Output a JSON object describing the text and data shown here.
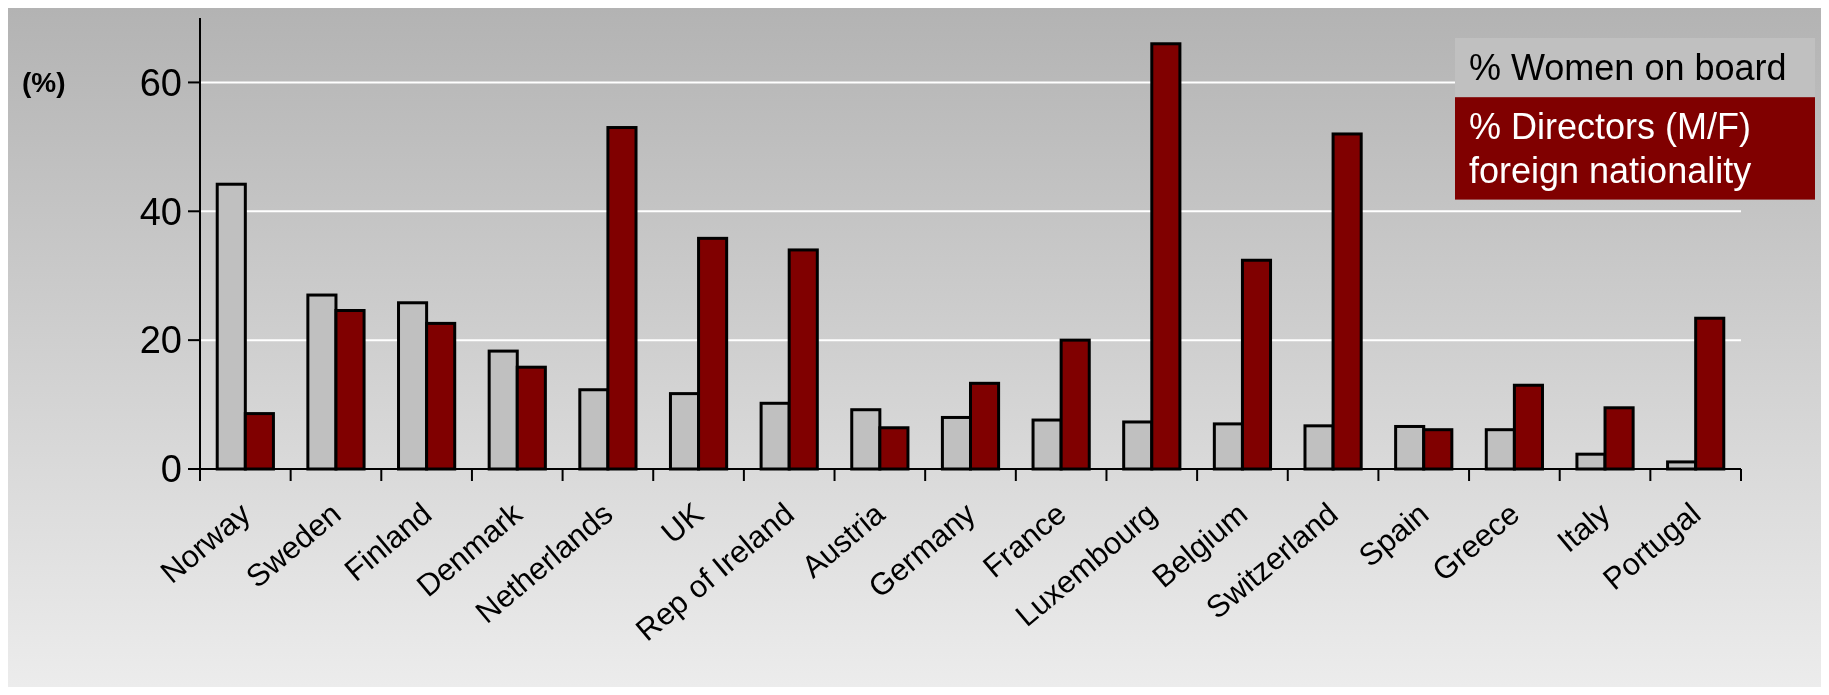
{
  "chart_data": {
    "type": "bar",
    "ylabel": "(%)",
    "categories": [
      "Norway",
      "Sweden",
      "Finland",
      "Denmark",
      "Netherlands",
      "UK",
      "Rep of Ireland",
      "Austria",
      "Germany",
      "France",
      "Luxembourg",
      "Belgium",
      "Switzerland",
      "Spain",
      "Greece",
      "Italy",
      "Portugal"
    ],
    "series": [
      {
        "name": "% Women on board",
        "color": "#c0c0c0",
        "values": [
          44.2,
          27,
          25.8,
          18.3,
          12.3,
          11.7,
          10.2,
          9.2,
          8,
          7.6,
          7.3,
          7,
          6.7,
          6.6,
          6.1,
          2.3,
          1.1
        ]
      },
      {
        "name": "% Directors (M/F) foreign nationality",
        "color": "#800000",
        "values": [
          8.6,
          24.6,
          22.6,
          15.8,
          53,
          35.8,
          34,
          6.4,
          13.3,
          20,
          66,
          32.4,
          52,
          6.1,
          13,
          9.5,
          23.4
        ]
      }
    ],
    "ylim": [
      0,
      70
    ],
    "yticks": [
      0,
      20,
      40,
      60
    ],
    "grid": "y",
    "legend": "top right"
  }
}
